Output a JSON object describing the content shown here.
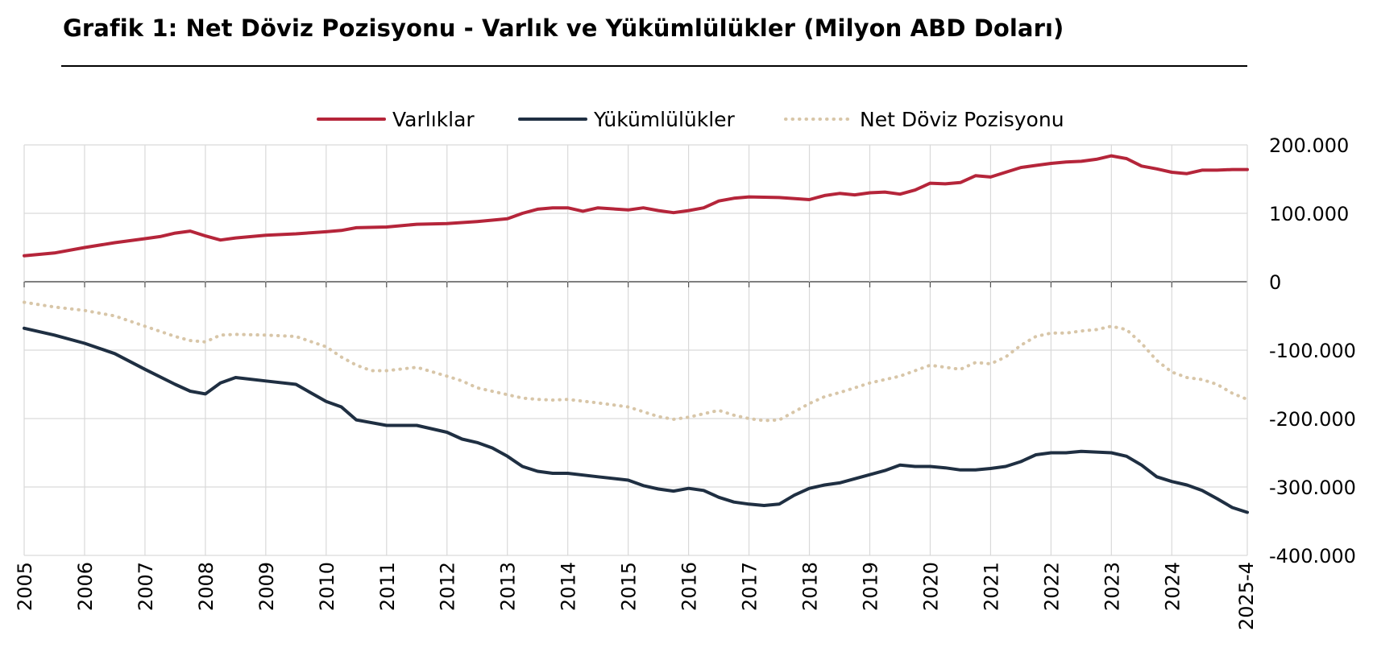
{
  "title": "Grafik 1: Net Döviz Pozisyonu - Varlık ve Yükümlülükler (Milyon ABD Doları)",
  "colors": {
    "assets": "#b5253a",
    "liabilities": "#1f2f42",
    "net": "#d8c6a8",
    "grid": "#d9d9d9",
    "axis": "#555555"
  },
  "chart_data": {
    "type": "line",
    "title": "Grafik 1: Net Döviz Pozisyonu - Varlık ve Yükümlülükler (Milyon ABD Doları)",
    "xlabel": "",
    "ylabel": "",
    "ylim": [
      -400000,
      200000
    ],
    "yticks": [
      200000,
      100000,
      0,
      -100000,
      -200000,
      -300000,
      -400000
    ],
    "ytick_labels": [
      "200.000",
      "100.000",
      "0",
      "-100.000",
      "-200.000",
      "-300.000",
      "-400.000"
    ],
    "xlim": [
      2005.0,
      2025.25
    ],
    "xticks": [
      2005,
      2006,
      2007,
      2008,
      2009,
      2010,
      2011,
      2012,
      2013,
      2014,
      2015,
      2016,
      2017,
      2018,
      2019,
      2020,
      2021,
      2022,
      2023,
      2024
    ],
    "xtick_labels": [
      "2005",
      "2006",
      "2007",
      "2008",
      "2009",
      "2010",
      "2011",
      "2012",
      "2013",
      "2014",
      "2015",
      "2016",
      "2017",
      "2018",
      "2019",
      "2020",
      "2021",
      "2022",
      "2023",
      "2024"
    ],
    "last_label": "2025-4",
    "grid": true,
    "legend_position": "top",
    "series": [
      {
        "name": "Varlıklar",
        "style": "solid",
        "x": [
          2005.0,
          2005.5,
          2006.0,
          2006.5,
          2007.0,
          2007.25,
          2007.5,
          2007.75,
          2008.0,
          2008.25,
          2008.5,
          2009.0,
          2009.5,
          2010.0,
          2010.25,
          2010.5,
          2011.0,
          2011.5,
          2012.0,
          2012.5,
          2013.0,
          2013.25,
          2013.5,
          2013.75,
          2014.0,
          2014.25,
          2014.5,
          2015.0,
          2015.25,
          2015.5,
          2015.75,
          2016.0,
          2016.25,
          2016.5,
          2016.75,
          2017.0,
          2017.5,
          2018.0,
          2018.25,
          2018.5,
          2018.75,
          2019.0,
          2019.25,
          2019.5,
          2019.75,
          2020.0,
          2020.25,
          2020.5,
          2020.75,
          2021.0,
          2021.25,
          2021.5,
          2021.75,
          2022.0,
          2022.25,
          2022.5,
          2022.75,
          2023.0,
          2023.25,
          2023.5,
          2023.75,
          2024.0,
          2024.25,
          2024.5,
          2024.75,
          2025.0,
          2025.25
        ],
        "y": [
          38000,
          42000,
          50000,
          57000,
          63000,
          66000,
          71000,
          74000,
          67000,
          61000,
          64000,
          68000,
          70000,
          73000,
          75000,
          79000,
          80000,
          84000,
          85000,
          88000,
          92000,
          100000,
          106000,
          108000,
          108000,
          103000,
          108000,
          105000,
          108000,
          104000,
          101000,
          104000,
          108000,
          118000,
          122000,
          124000,
          123000,
          120000,
          126000,
          129000,
          127000,
          130000,
          131000,
          128000,
          134000,
          144000,
          143000,
          145000,
          155000,
          153000,
          160000,
          167000,
          170000,
          173000,
          175000,
          176000,
          179000,
          184000,
          180000,
          169000,
          165000,
          160000,
          158000,
          163000,
          163000,
          164000,
          164000
        ]
      },
      {
        "name": "Yükümlülükler",
        "style": "solid",
        "x": [
          2005.0,
          2005.5,
          2006.0,
          2006.5,
          2007.0,
          2007.5,
          2007.75,
          2008.0,
          2008.25,
          2008.5,
          2009.0,
          2009.5,
          2010.0,
          2010.25,
          2010.5,
          2011.0,
          2011.5,
          2012.0,
          2012.25,
          2012.5,
          2012.75,
          2013.0,
          2013.25,
          2013.5,
          2013.75,
          2014.0,
          2014.5,
          2015.0,
          2015.25,
          2015.5,
          2015.75,
          2016.0,
          2016.25,
          2016.5,
          2016.75,
          2017.0,
          2017.25,
          2017.5,
          2017.75,
          2018.0,
          2018.25,
          2018.5,
          2018.75,
          2019.0,
          2019.25,
          2019.5,
          2019.75,
          2020.0,
          2020.25,
          2020.5,
          2020.75,
          2021.0,
          2021.25,
          2021.5,
          2021.75,
          2022.0,
          2022.25,
          2022.5,
          2022.75,
          2023.0,
          2023.25,
          2023.5,
          2023.75,
          2024.0,
          2024.25,
          2024.5,
          2024.75,
          2025.0,
          2025.25
        ],
        "y": [
          -68000,
          -78000,
          -90000,
          -105000,
          -128000,
          -150000,
          -160000,
          -164000,
          -148000,
          -140000,
          -145000,
          -150000,
          -175000,
          -183000,
          -202000,
          -210000,
          -210000,
          -220000,
          -230000,
          -235000,
          -243000,
          -255000,
          -270000,
          -277000,
          -280000,
          -280000,
          -285000,
          -290000,
          -298000,
          -303000,
          -306000,
          -302000,
          -305000,
          -315000,
          -322000,
          -325000,
          -327000,
          -325000,
          -312000,
          -302000,
          -297000,
          -294000,
          -288000,
          -282000,
          -276000,
          -268000,
          -270000,
          -270000,
          -272000,
          -275000,
          -275000,
          -273000,
          -270000,
          -263000,
          -253000,
          -250000,
          -250000,
          -248000,
          -249000,
          -250000,
          -255000,
          -268000,
          -285000,
          -292000,
          -297000,
          -305000,
          -317000,
          -330000,
          -337000
        ]
      },
      {
        "name": "Net Döviz Pozisyonu",
        "style": "dotted",
        "x": [
          2005.0,
          2005.5,
          2006.0,
          2006.5,
          2007.0,
          2007.5,
          2007.75,
          2008.0,
          2008.25,
          2008.5,
          2009.0,
          2009.5,
          2010.0,
          2010.25,
          2010.5,
          2010.75,
          2011.0,
          2011.5,
          2012.0,
          2012.25,
          2012.5,
          2013.0,
          2013.25,
          2013.5,
          2013.75,
          2014.0,
          2014.5,
          2015.0,
          2015.25,
          2015.5,
          2015.75,
          2016.0,
          2016.25,
          2016.5,
          2016.75,
          2017.0,
          2017.25,
          2017.5,
          2017.75,
          2018.0,
          2018.25,
          2018.5,
          2018.75,
          2019.0,
          2019.25,
          2019.5,
          2019.75,
          2020.0,
          2020.25,
          2020.5,
          2020.75,
          2021.0,
          2021.25,
          2021.5,
          2021.75,
          2022.0,
          2022.25,
          2022.5,
          2022.75,
          2023.0,
          2023.25,
          2023.5,
          2023.75,
          2024.0,
          2024.25,
          2024.5,
          2024.75,
          2025.0,
          2025.25
        ],
        "y": [
          -30000,
          -37000,
          -42000,
          -50000,
          -65000,
          -80000,
          -86000,
          -88000,
          -78000,
          -77000,
          -78000,
          -80000,
          -95000,
          -110000,
          -122000,
          -130000,
          -130000,
          -125000,
          -138000,
          -145000,
          -155000,
          -165000,
          -170000,
          -172000,
          -173000,
          -172000,
          -177000,
          -183000,
          -190000,
          -197000,
          -201000,
          -198000,
          -193000,
          -188000,
          -195000,
          -200000,
          -203000,
          -202000,
          -190000,
          -178000,
          -168000,
          -162000,
          -155000,
          -148000,
          -143000,
          -138000,
          -130000,
          -122000,
          -125000,
          -128000,
          -118000,
          -120000,
          -110000,
          -93000,
          -80000,
          -75000,
          -75000,
          -72000,
          -70000,
          -65000,
          -70000,
          -90000,
          -115000,
          -132000,
          -140000,
          -143000,
          -150000,
          -163000,
          -172000
        ]
      }
    ]
  }
}
